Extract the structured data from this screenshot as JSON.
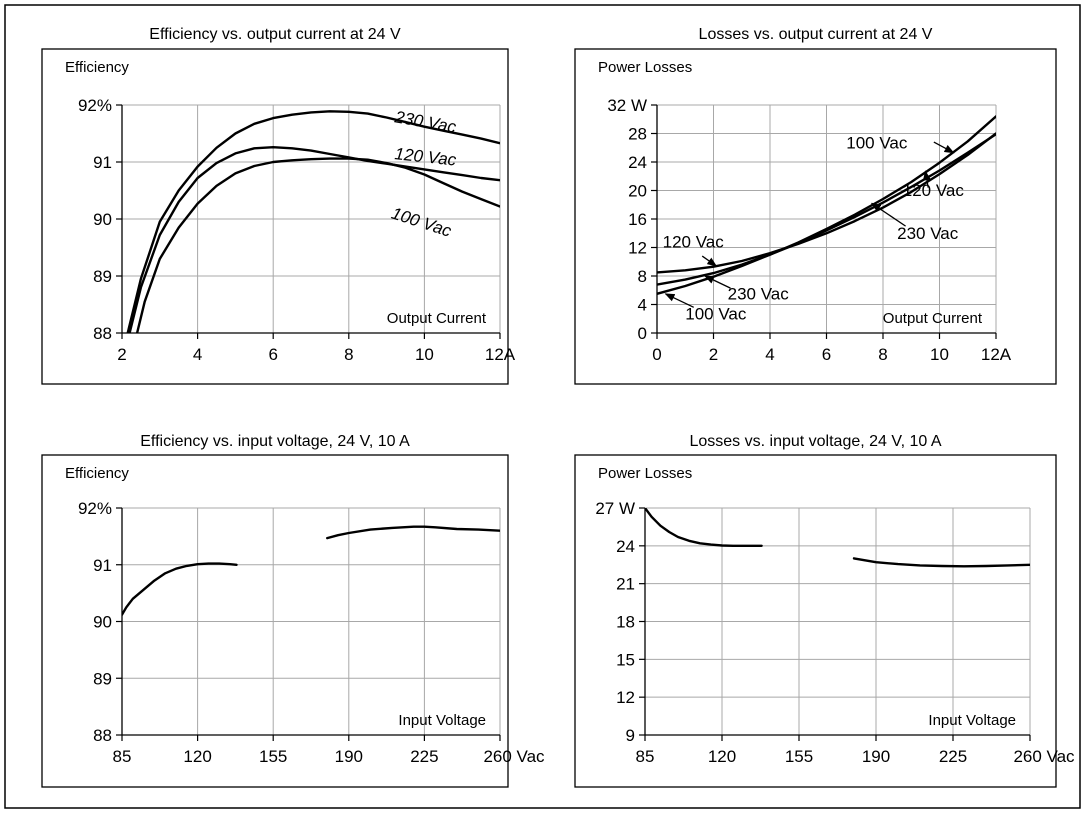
{
  "chart_data": [
    {
      "type": "line",
      "title": "Efficiency vs. output current at 24 V",
      "ylabel": "Efficiency",
      "xlabel": "Output Current",
      "xlim": [
        2,
        12
      ],
      "ylim": [
        88,
        92
      ],
      "xticks": [
        2,
        4,
        6,
        8,
        10,
        12
      ],
      "xtick_labels": [
        "2",
        "4",
        "6",
        "8",
        "10",
        "12A"
      ],
      "yticks": [
        88,
        89,
        90,
        91,
        92
      ],
      "ytick_labels": [
        "88",
        "89",
        "90",
        "91",
        "92%"
      ],
      "grid": true,
      "series": [
        {
          "name": "230 Vac",
          "label_at": [
            9.2,
            91.7
          ],
          "label_rotate": 10,
          "x": [
            2.15,
            2.5,
            3,
            3.5,
            4,
            4.5,
            5,
            5.5,
            6,
            6.5,
            7,
            7.5,
            8,
            8.5,
            9,
            9.5,
            10,
            10.5,
            11,
            11.5,
            12
          ],
          "y": [
            88.0,
            88.95,
            89.95,
            90.5,
            90.92,
            91.25,
            91.5,
            91.67,
            91.77,
            91.83,
            91.87,
            91.89,
            91.88,
            91.85,
            91.78,
            91.7,
            91.62,
            91.55,
            91.48,
            91.41,
            91.33
          ]
        },
        {
          "name": "120 Vac",
          "label_at": [
            9.2,
            91.05
          ],
          "label_rotate": 6,
          "x": [
            2.2,
            2.5,
            3,
            3.5,
            4,
            4.5,
            5,
            5.5,
            6,
            6.5,
            7,
            7.5,
            8,
            8.5,
            9,
            9.5,
            10,
            10.5,
            11,
            11.5,
            12
          ],
          "y": [
            88.0,
            88.8,
            89.72,
            90.3,
            90.72,
            90.98,
            91.15,
            91.24,
            91.26,
            91.24,
            91.2,
            91.14,
            91.08,
            91.02,
            90.97,
            90.92,
            90.87,
            90.82,
            90.77,
            90.72,
            90.68
          ]
        },
        {
          "name": "100 Vac",
          "label_at": [
            9.1,
            90.02
          ],
          "label_rotate": 18,
          "x": [
            2.4,
            2.6,
            3,
            3.5,
            4,
            4.5,
            5,
            5.5,
            6,
            6.5,
            7,
            7.5,
            8,
            8.5,
            9,
            9.5,
            10,
            10.5,
            11,
            11.5,
            12
          ],
          "y": [
            88.0,
            88.55,
            89.3,
            89.85,
            90.27,
            90.58,
            90.8,
            90.93,
            91.0,
            91.03,
            91.05,
            91.06,
            91.06,
            91.04,
            90.98,
            90.9,
            90.78,
            90.63,
            90.48,
            90.35,
            90.22
          ]
        }
      ]
    },
    {
      "type": "line",
      "title": "Losses vs. output current at 24 V",
      "ylabel": "Power Losses",
      "xlabel": "Output Current",
      "xlim": [
        0,
        12
      ],
      "ylim": [
        0,
        32
      ],
      "xticks": [
        0,
        2,
        4,
        6,
        8,
        10,
        12
      ],
      "xtick_labels": [
        "0",
        "2",
        "4",
        "6",
        "8",
        "10",
        "12A"
      ],
      "yticks": [
        0,
        4,
        8,
        12,
        16,
        20,
        24,
        28,
        32
      ],
      "ytick_labels": [
        "0",
        "4",
        "8",
        "12",
        "16",
        "20",
        "24",
        "28",
        "32 W"
      ],
      "grid": true,
      "series": [
        {
          "name": "100 Vac",
          "label_at": [
            6.7,
            25.9
          ],
          "arrow_from": [
            9.8,
            26.8
          ],
          "arrow_to": [
            10.5,
            25.3
          ],
          "label2_at": [
            1.0,
            1.9
          ],
          "arrow2_from": [
            1.3,
            3.6
          ],
          "arrow2_to": [
            0.3,
            5.5
          ],
          "x": [
            0,
            1,
            2,
            3,
            4,
            5,
            6,
            7,
            8,
            9,
            10,
            11,
            12
          ],
          "y": [
            5.5,
            6.6,
            7.9,
            9.4,
            11.0,
            12.7,
            14.6,
            16.6,
            18.8,
            21.2,
            23.9,
            26.9,
            30.4
          ]
        },
        {
          "name": "120 Vac",
          "label_at": [
            0.2,
            12.0
          ],
          "arrow_from": [
            1.6,
            10.8
          ],
          "arrow_to": [
            2.1,
            9.4
          ],
          "label2_at": [
            8.7,
            19.2
          ],
          "arrow2_from": [
            9.6,
            20.4
          ],
          "arrow2_to": [
            9.5,
            22.7
          ],
          "x": [
            0,
            1,
            2,
            3,
            4,
            5,
            6,
            7,
            8,
            9,
            10,
            11,
            12
          ],
          "y": [
            8.5,
            8.8,
            9.3,
            10.1,
            11.2,
            12.5,
            14.0,
            15.7,
            17.6,
            19.8,
            22.3,
            25.0,
            28.0
          ]
        },
        {
          "name": "230 Vac",
          "label_at": [
            2.5,
            4.7
          ],
          "arrow_from": [
            2.6,
            6.3
          ],
          "arrow_to": [
            1.7,
            8.0
          ],
          "label2_at": [
            8.5,
            13.2
          ],
          "arrow2_from": [
            8.8,
            15.0
          ],
          "arrow2_to": [
            7.6,
            18.2
          ],
          "x": [
            0,
            1,
            2,
            3,
            4,
            5,
            6,
            7,
            8,
            9,
            10,
            11,
            12
          ],
          "y": [
            6.8,
            7.5,
            8.4,
            9.6,
            11.0,
            12.6,
            14.4,
            16.3,
            18.3,
            20.5,
            22.8,
            25.3,
            27.9
          ]
        }
      ]
    },
    {
      "type": "line",
      "title": "Efficiency vs. input voltage,  24 V, 10 A",
      "ylabel": "Efficiency",
      "xlabel": "Input Voltage",
      "xlim": [
        85,
        260
      ],
      "ylim": [
        88,
        92
      ],
      "xticks": [
        85,
        120,
        155,
        190,
        225,
        260
      ],
      "xtick_labels": [
        "85",
        "120",
        "155",
        "190",
        "225",
        "260 Vac"
      ],
      "yticks": [
        88,
        89,
        90,
        91,
        92
      ],
      "ytick_labels": [
        "88",
        "89",
        "90",
        "91",
        "92%"
      ],
      "grid": true,
      "series": [
        {
          "x": [
            85,
            87,
            90,
            95,
            100,
            105,
            110,
            115,
            120,
            125,
            130,
            135,
            138
          ],
          "y": [
            90.12,
            90.25,
            90.4,
            90.56,
            90.72,
            90.85,
            90.93,
            90.98,
            91.01,
            91.02,
            91.02,
            91.01,
            91.0
          ]
        },
        {
          "x": [
            180,
            185,
            190,
            200,
            210,
            220,
            225,
            230,
            240,
            250,
            260
          ],
          "y": [
            91.47,
            91.52,
            91.56,
            91.62,
            91.65,
            91.67,
            91.67,
            91.66,
            91.63,
            91.62,
            91.6
          ]
        }
      ]
    },
    {
      "type": "line",
      "title": "Losses vs. input voltage,  24 V, 10 A",
      "ylabel": "Power Losses",
      "xlabel": "Input Voltage",
      "xlim": [
        85,
        260
      ],
      "ylim": [
        9,
        27
      ],
      "xticks": [
        85,
        120,
        155,
        190,
        225,
        260
      ],
      "xtick_labels": [
        "85",
        "120",
        "155",
        "190",
        "225",
        "260 Vac"
      ],
      "yticks": [
        9,
        12,
        15,
        18,
        21,
        24,
        27
      ],
      "ytick_labels": [
        "9",
        "12",
        "15",
        "18",
        "21",
        "24",
        "27 W"
      ],
      "grid": true,
      "series": [
        {
          "x": [
            85,
            88,
            92,
            96,
            100,
            105,
            110,
            115,
            120,
            125,
            130,
            138
          ],
          "y": [
            27.0,
            26.3,
            25.6,
            25.1,
            24.7,
            24.4,
            24.2,
            24.1,
            24.03,
            24.0,
            24.0,
            24.0
          ]
        },
        {
          "x": [
            180,
            185,
            190,
            200,
            210,
            220,
            230,
            240,
            250,
            260
          ],
          "y": [
            23.0,
            22.85,
            22.7,
            22.55,
            22.45,
            22.4,
            22.38,
            22.4,
            22.45,
            22.5
          ]
        }
      ]
    }
  ]
}
